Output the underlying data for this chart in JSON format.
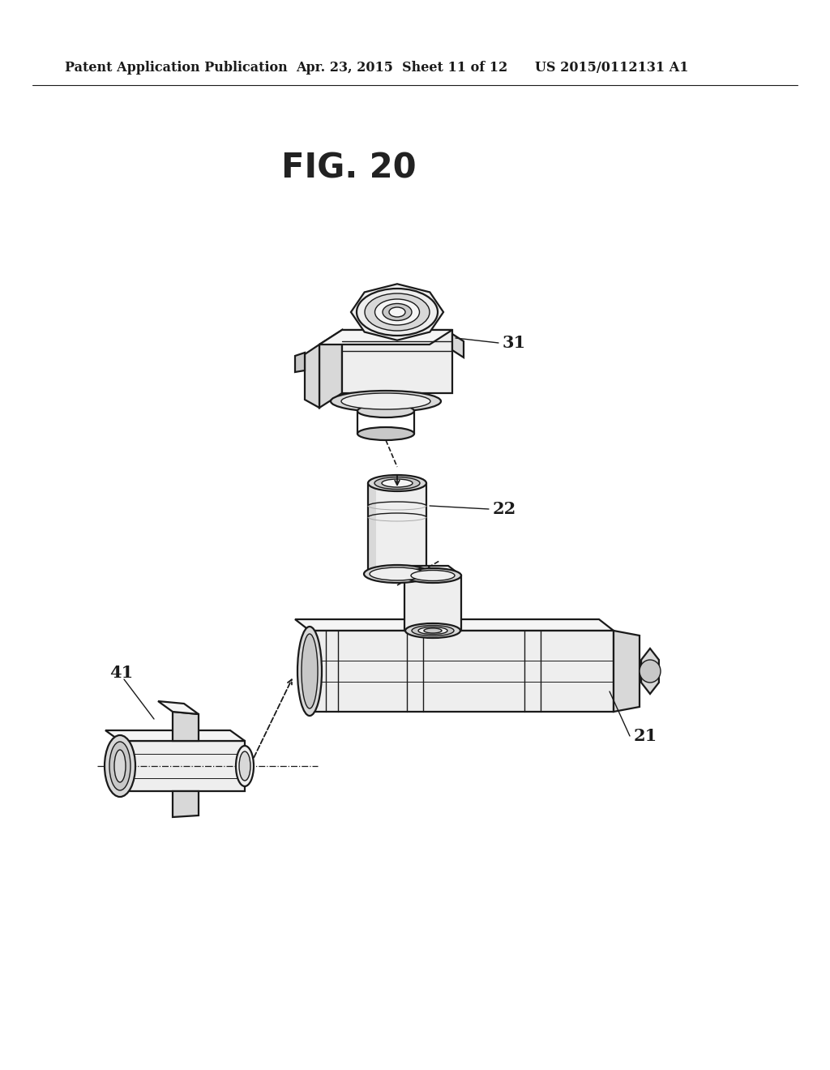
{
  "title": "FIG. 20",
  "header_left": "Patent Application Publication",
  "header_center": "Apr. 23, 2015  Sheet 11 of 12",
  "header_right": "US 2015/0112131 A1",
  "label_31": "31",
  "label_22": "22",
  "label_21": "21",
  "label_41": "41",
  "bg_color": "#ffffff",
  "line_color": "#1a1a1a",
  "fill_dark": "#c8c8c8",
  "fill_mid": "#d8d8d8",
  "fill_light": "#eeeeee",
  "fill_vlight": "#f5f5f5",
  "fill_white": "#ffffff",
  "title_fontsize": 30,
  "header_fontsize": 11.5,
  "label_fontsize": 15
}
